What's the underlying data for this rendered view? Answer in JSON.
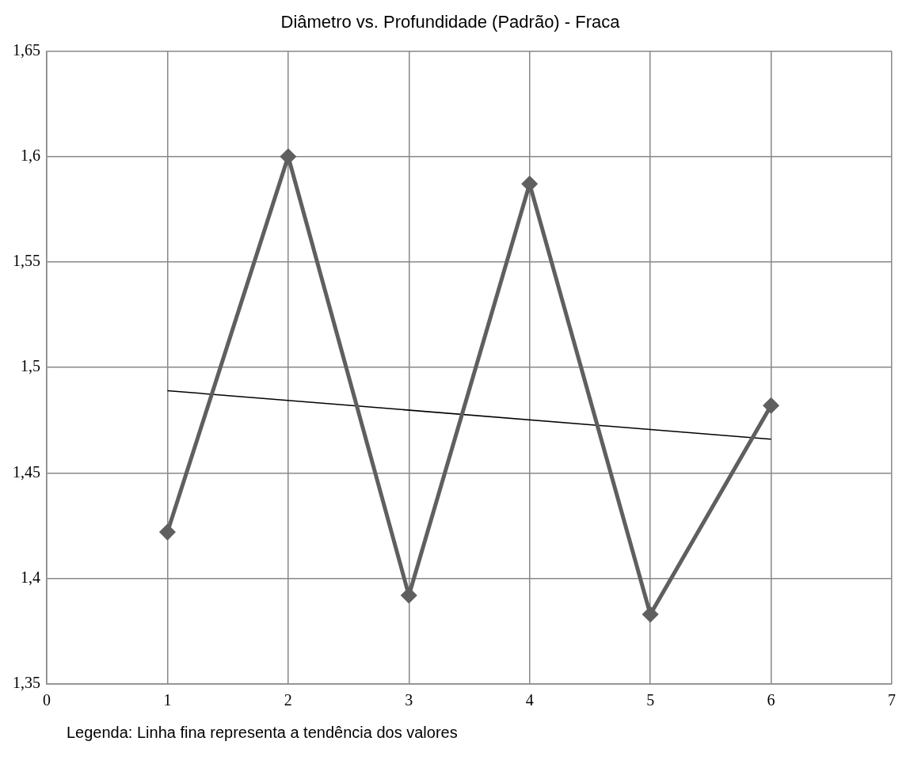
{
  "chart_data": {
    "type": "line",
    "title": "Diâmetro vs. Profundidade (Padrão) - Fraca",
    "xlim": [
      0,
      7
    ],
    "xticks": [
      0,
      1,
      2,
      3,
      4,
      5,
      6,
      7
    ],
    "ylim": [
      1.35,
      1.65
    ],
    "yticks": [
      {
        "value": 1.35,
        "label": "1,35"
      },
      {
        "value": 1.4,
        "label": "1,4"
      },
      {
        "value": 1.45,
        "label": "1,45"
      },
      {
        "value": 1.5,
        "label": "1,5"
      },
      {
        "value": 1.55,
        "label": "1,55"
      },
      {
        "value": 1.6,
        "label": "1,6"
      },
      {
        "value": 1.65,
        "label": "1,65"
      }
    ],
    "grid": true,
    "legend": false,
    "series": [
      {
        "color": "#5f5f5f",
        "marker": "diamond",
        "x": [
          1,
          2,
          3,
          4,
          5,
          6
        ],
        "values": [
          1.422,
          1.6,
          1.392,
          1.587,
          1.383,
          1.482
        ]
      },
      {
        "color": "#000000",
        "marker": "none",
        "x": [
          1,
          6
        ],
        "values": [
          1.489,
          1.466
        ]
      }
    ],
    "annotations": [
      "Legenda: Linha fina representa a tendência dos valores"
    ]
  }
}
